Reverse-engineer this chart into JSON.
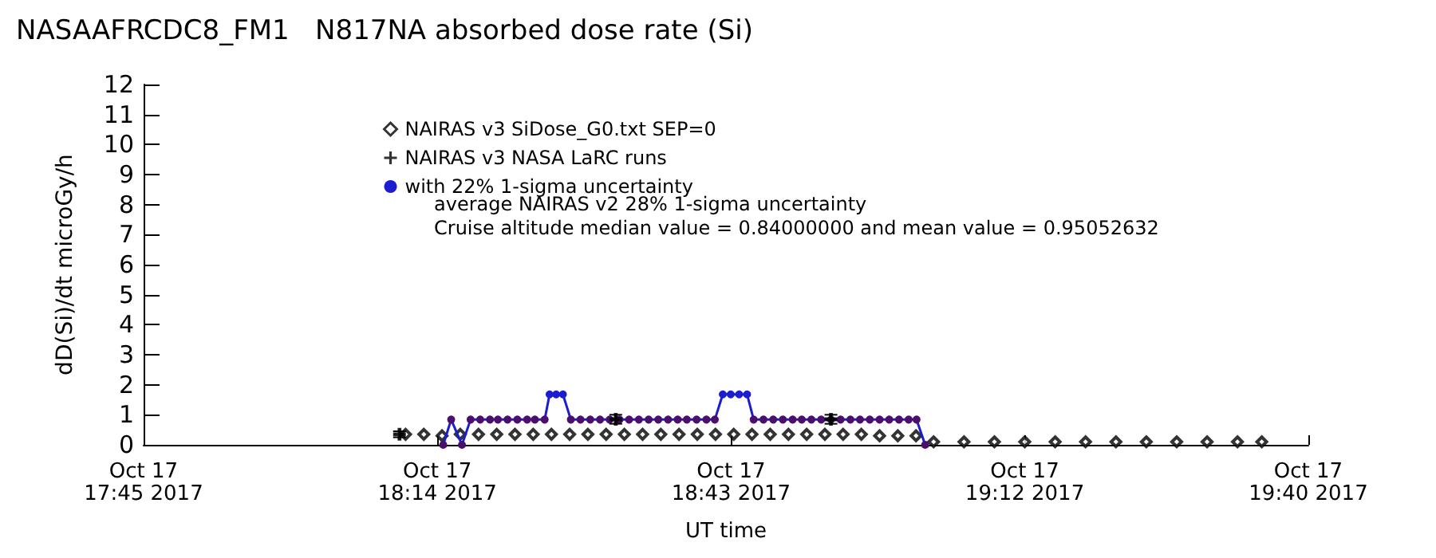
{
  "chart_data": {
    "type": "line",
    "title": "NASAAFRCDC8_FM1   N817NA absorbed dose rate (Si)",
    "xlabel": "UT time",
    "ylabel": "dD(Si)/dt microGy/h",
    "annotations": [
      "average NAIRAS v2 28% 1-sigma uncertainty",
      "Cruise altitude median value = 0.84000000 and mean value = 0.95052632"
    ],
    "xlim": [
      "2017-10-17T17:45",
      "2017-10-17T19:40"
    ],
    "xticks": [
      {
        "value": "2017-10-17T17:45",
        "label": "Oct 17\n17:45 2017"
      },
      {
        "value": "2017-10-17T18:14",
        "label": "Oct 17\n18:14 2017"
      },
      {
        "value": "2017-10-17T18:43",
        "label": "Oct 17\n18:43 2017"
      },
      {
        "value": "2017-10-17T19:12",
        "label": "Oct 17\n19:12 2017"
      },
      {
        "value": "2017-10-17T19:40",
        "label": "Oct 17\n19:40 2017"
      }
    ],
    "ylim": [
      0,
      12
    ],
    "yticks": [
      0,
      1,
      2,
      3,
      4,
      5,
      6,
      7,
      8,
      9,
      10,
      11,
      12
    ],
    "grid": false,
    "legend": "top",
    "series": [
      {
        "name": "NAIRAS v3 SiDose_G0.txt SEP=0",
        "type": "scatter",
        "marker": "diamond",
        "color": "#000000",
        "x": [
          "2017-10-17T18:10:52",
          "2017-10-17T18:12:40",
          "2017-10-17T18:14:28",
          "2017-10-17T18:16:16",
          "2017-10-17T18:18:04",
          "2017-10-17T18:19:52",
          "2017-10-17T18:21:40",
          "2017-10-17T18:23:28",
          "2017-10-17T18:25:16",
          "2017-10-17T18:27:04",
          "2017-10-17T18:28:52",
          "2017-10-17T18:30:40",
          "2017-10-17T18:32:28",
          "2017-10-17T18:34:16",
          "2017-10-17T18:36:04",
          "2017-10-17T18:37:52",
          "2017-10-17T18:39:40",
          "2017-10-17T18:41:28",
          "2017-10-17T18:43:16",
          "2017-10-17T18:45:04",
          "2017-10-17T18:46:52",
          "2017-10-17T18:48:40",
          "2017-10-17T18:50:28",
          "2017-10-17T18:52:16",
          "2017-10-17T18:54:04",
          "2017-10-17T18:55:52",
          "2017-10-17T18:57:40",
          "2017-10-17T18:59:28",
          "2017-10-17T19:01:16",
          "2017-10-17T19:03:00",
          "2017-10-17T19:06:00",
          "2017-10-17T19:09:00",
          "2017-10-17T19:12:00",
          "2017-10-17T19:15:00",
          "2017-10-17T19:18:00",
          "2017-10-17T19:21:00",
          "2017-10-17T19:24:00",
          "2017-10-17T19:27:00",
          "2017-10-17T19:30:00",
          "2017-10-17T19:33:00",
          "2017-10-17T19:35:24"
        ],
        "values": [
          0.35,
          0.35,
          0.3,
          0.35,
          0.35,
          0.35,
          0.35,
          0.35,
          0.35,
          0.35,
          0.35,
          0.35,
          0.35,
          0.35,
          0.35,
          0.35,
          0.35,
          0.35,
          0.35,
          0.35,
          0.35,
          0.35,
          0.35,
          0.35,
          0.35,
          0.35,
          0.3,
          0.3,
          0.3,
          0.1,
          0.1,
          0.1,
          0.1,
          0.1,
          0.1,
          0.1,
          0.1,
          0.1,
          0.1,
          0.1,
          0.1
        ]
      },
      {
        "name": "NAIRAS v3 NASA LaRC runs",
        "type": "scatter",
        "marker": "cross",
        "color": "#000000",
        "x": [
          "2017-10-17T18:10:16",
          "2017-10-17T18:31:37",
          "2017-10-17T18:52:52"
        ],
        "values": [
          0.35,
          0.85,
          0.85
        ],
        "errors": [
          0.1,
          0.15,
          0.15
        ]
      },
      {
        "name": "with 22% 1-sigma uncertainty",
        "marker": "circle",
        "color": "#1c1cd0",
        "x": [
          "2017-10-17T18:14:35",
          "2017-10-17T18:15:22",
          "2017-10-17T18:16:26",
          "2017-10-17T18:17:17",
          "2017-10-17T18:18:14",
          "2017-10-17T18:19:12",
          "2017-10-17T18:19:59",
          "2017-10-17T18:20:56",
          "2017-10-17T18:21:54",
          "2017-10-17T18:22:52",
          "2017-10-17T18:23:38",
          "2017-10-17T18:24:36",
          "2017-10-17T18:25:05",
          "2017-10-17T18:25:44",
          "2017-10-17T18:26:24",
          "2017-10-17T18:27:11",
          "2017-10-17T18:28:08",
          "2017-10-17T18:29:06",
          "2017-10-17T18:30:04",
          "2017-10-17T18:31:01",
          "2017-10-17T18:31:59",
          "2017-10-17T18:32:56",
          "2017-10-17T18:33:54",
          "2017-10-17T18:34:52",
          "2017-10-17T18:35:49",
          "2017-10-17T18:36:47",
          "2017-10-17T18:37:44",
          "2017-10-17T18:38:38",
          "2017-10-17T18:39:36",
          "2017-10-17T18:40:34",
          "2017-10-17T18:41:24",
          "2017-10-17T18:42:11",
          "2017-10-17T18:42:58",
          "2017-10-17T18:43:48",
          "2017-10-17T18:44:35",
          "2017-10-17T18:45:14",
          "2017-10-17T18:46:12",
          "2017-10-17T18:47:10",
          "2017-10-17T18:48:07",
          "2017-10-17T18:49:05",
          "2017-10-17T18:49:59",
          "2017-10-17T18:50:56",
          "2017-10-17T18:51:54",
          "2017-10-17T18:52:52",
          "2017-10-17T18:53:49",
          "2017-10-17T18:54:47",
          "2017-10-17T18:55:44",
          "2017-10-17T18:56:42",
          "2017-10-17T18:57:40",
          "2017-10-17T18:58:37",
          "2017-10-17T18:59:35",
          "2017-10-17T19:00:32",
          "2017-10-17T19:01:19",
          "2017-10-17T19:02:10"
        ],
        "values": [
          0,
          0.84,
          0,
          0.84,
          0.84,
          0.84,
          0.84,
          0.84,
          0.84,
          0.84,
          0.84,
          0.84,
          1.68,
          1.68,
          1.68,
          0.84,
          0.84,
          0.84,
          0.84,
          0.84,
          0.84,
          0.84,
          0.84,
          0.84,
          0.84,
          0.84,
          0.84,
          0.84,
          0.84,
          0.84,
          0.84,
          1.68,
          1.68,
          1.68,
          1.68,
          0.84,
          0.84,
          0.84,
          0.84,
          0.84,
          0.84,
          0.84,
          0.84,
          0.84,
          0.84,
          0.84,
          0.84,
          0.84,
          0.84,
          0.84,
          0.84,
          0.84,
          0.84,
          0
        ],
        "colors": [
          "#4b0f6e",
          "#4b0f6e",
          "#4b0f6e",
          "#4b0f6e",
          "#4b0f6e",
          "#4b0f6e",
          "#4b0f6e",
          "#4b0f6e",
          "#4b0f6e",
          "#4b0f6e",
          "#4b0f6e",
          "#4b0f6e",
          "#1c1cd0",
          "#1c1cd0",
          "#1c1cd0",
          "#4b0f6e",
          "#4b0f6e",
          "#4b0f6e",
          "#4b0f6e",
          "#4b0f6e",
          "#4b0f6e",
          "#4b0f6e",
          "#4b0f6e",
          "#4b0f6e",
          "#4b0f6e",
          "#4b0f6e",
          "#4b0f6e",
          "#4b0f6e",
          "#4b0f6e",
          "#4b0f6e",
          "#4b0f6e",
          "#1c1cd0",
          "#1c1cd0",
          "#1c1cd0",
          "#1c1cd0",
          "#4b0f6e",
          "#4b0f6e",
          "#4b0f6e",
          "#4b0f6e",
          "#4b0f6e",
          "#4b0f6e",
          "#4b0f6e",
          "#4b0f6e",
          "#4b0f6e",
          "#4b0f6e",
          "#4b0f6e",
          "#4b0f6e",
          "#4b0f6e",
          "#4b0f6e",
          "#4b0f6e",
          "#4b0f6e",
          "#4b0f6e",
          "#4b0f6e",
          "#4b0f6e"
        ]
      }
    ]
  }
}
